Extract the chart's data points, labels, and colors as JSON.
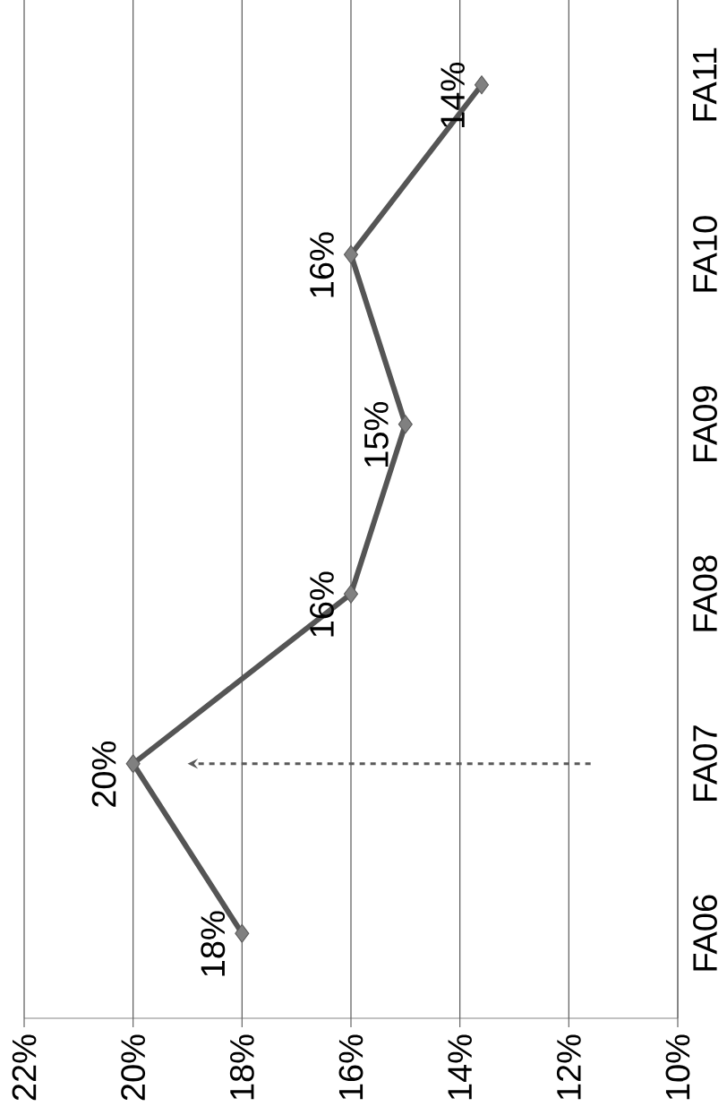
{
  "chart_data": {
    "type": "line",
    "orientation": "horizontal",
    "categories": [
      "FA11",
      "FA10",
      "FA09",
      "FA08",
      "FA07",
      "FA06"
    ],
    "values": [
      13.6,
      16,
      15,
      16,
      20,
      18
    ],
    "value_labels": [
      "14%",
      "16%",
      "15%",
      "16%",
      "20%",
      "18%"
    ],
    "color": "#555555",
    "xlim": [
      22,
      10
    ],
    "xticks": [
      {
        "value": 22,
        "label": "22%"
      },
      {
        "value": 20,
        "label": "20%"
      },
      {
        "value": 18,
        "label": "18%"
      },
      {
        "value": 16,
        "label": "16%"
      },
      {
        "value": 14,
        "label": "14%"
      },
      {
        "value": 12,
        "label": "12%"
      },
      {
        "value": 10,
        "label": "10%"
      }
    ],
    "grid": "x",
    "marker": "diamond",
    "line_style": "solid"
  }
}
